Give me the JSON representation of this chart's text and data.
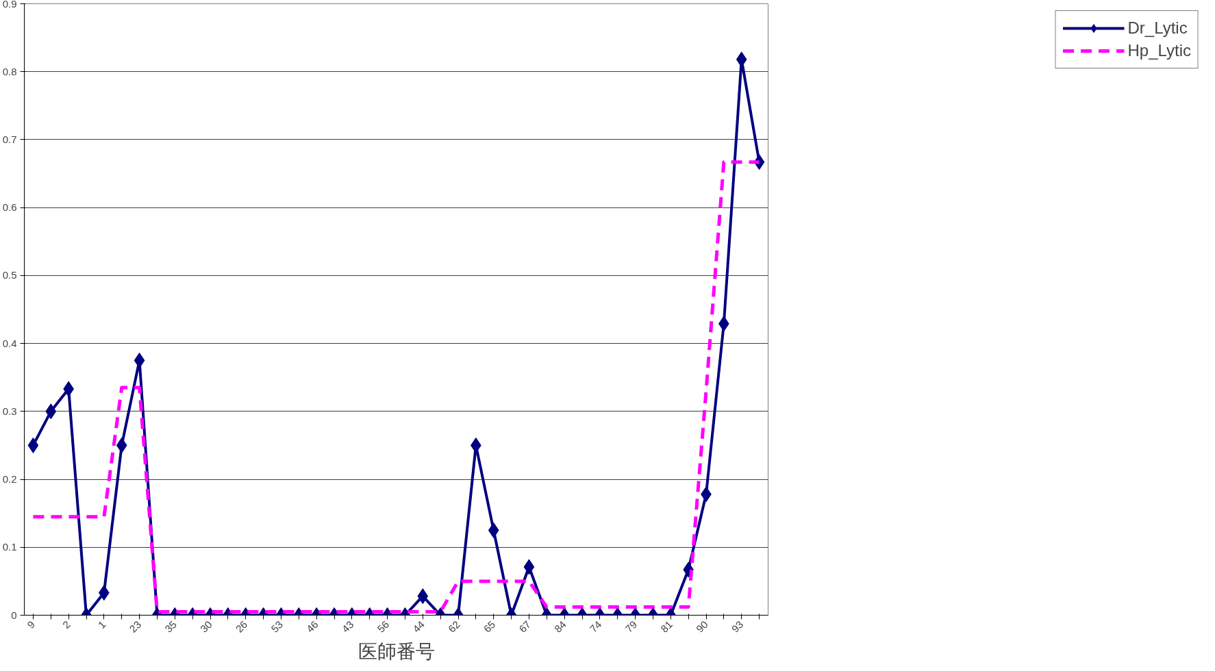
{
  "chart_data": {
    "type": "line",
    "xlabel": "医師番号",
    "categories": [
      "9",
      null,
      "2",
      null,
      "1",
      null,
      "23",
      null,
      "35",
      null,
      "30",
      null,
      "26",
      null,
      "53",
      null,
      "46",
      null,
      "43",
      null,
      "56",
      null,
      "44",
      null,
      "62",
      null,
      "65",
      null,
      "67",
      null,
      "84",
      null,
      "74",
      null,
      "79",
      null,
      "81",
      null,
      "90",
      null,
      "93",
      null
    ],
    "series": [
      {
        "name": "Dr_Lytic",
        "color": "#000080",
        "marker": "diamond",
        "line_style": "solid",
        "values": [
          0.25,
          0.3,
          0.333,
          0,
          0.033,
          0.25,
          0.375,
          0,
          0,
          0,
          0,
          0,
          0,
          0,
          0,
          0,
          0,
          0,
          0,
          0,
          0,
          0,
          0.028,
          0,
          0,
          0.25,
          0.125,
          0,
          0.071,
          0,
          0,
          0,
          0,
          0,
          0,
          0,
          0,
          0.067,
          0.178,
          0.429,
          0.818,
          0.667
        ]
      },
      {
        "name": "Hp_Lytic",
        "color": "#ff00ff",
        "marker": "none",
        "line_style": "dashed",
        "values": [
          0.145,
          0.145,
          0.145,
          0.145,
          0.145,
          0.335,
          0.335,
          0.005,
          0.005,
          0.005,
          0.005,
          0.005,
          0.005,
          0.005,
          0.005,
          0.005,
          0.005,
          0.005,
          0.005,
          0.005,
          0.005,
          0.005,
          0.005,
          0.005,
          0.05,
          0.05,
          0.05,
          0.05,
          0.05,
          0.012,
          0.012,
          0.012,
          0.012,
          0.012,
          0.012,
          0.012,
          0.012,
          0.012,
          0.33,
          0.667,
          0.667,
          0.667
        ]
      }
    ],
    "ylim": [
      0,
      0.9
    ],
    "yticks": [
      0,
      0.1,
      0.2,
      0.3,
      0.4,
      0.5,
      0.6,
      0.7,
      0.8,
      0.9
    ],
    "grid": "y",
    "legend": "right"
  }
}
